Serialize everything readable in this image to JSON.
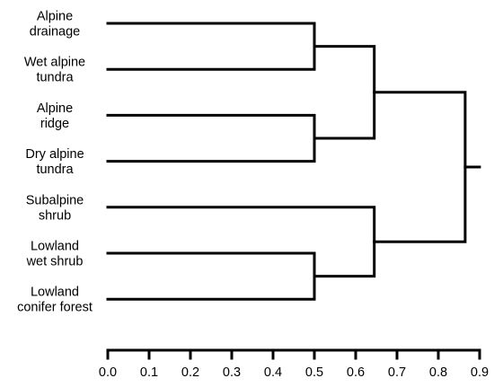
{
  "dendrogram": {
    "leaves": [
      {
        "lines": [
          "Alpine",
          "drainage"
        ]
      },
      {
        "lines": [
          "Wet alpine",
          "tundra"
        ]
      },
      {
        "lines": [
          "Alpine",
          "ridge"
        ]
      },
      {
        "lines": [
          "Dry alpine",
          "tundra"
        ]
      },
      {
        "lines": [
          "Subalpine",
          "shrub"
        ]
      },
      {
        "lines": [
          "Lowland",
          "wet shrub"
        ]
      },
      {
        "lines": [
          "Lowland",
          "conifer forest"
        ]
      }
    ],
    "merges": [
      {
        "id": "m1",
        "children": [
          "L0",
          "L1"
        ],
        "height": 0.5
      },
      {
        "id": "m2",
        "children": [
          "L2",
          "L3"
        ],
        "height": 0.5
      },
      {
        "id": "m3",
        "children": [
          "L5",
          "L6"
        ],
        "height": 0.5
      },
      {
        "id": "m4",
        "children": [
          "m1",
          "m2"
        ],
        "height": 0.645
      },
      {
        "id": "m5",
        "children": [
          "L4",
          "m3"
        ],
        "height": 0.645
      },
      {
        "id": "m6",
        "children": [
          "m4",
          "m5"
        ],
        "height": 0.865
      }
    ],
    "axis": {
      "range": [
        0.0,
        0.9
      ],
      "ticks": [
        "0.0",
        "0.1",
        "0.2",
        "0.3",
        "0.4",
        "0.5",
        "0.6",
        "0.7",
        "0.8",
        "0.9"
      ],
      "values": [
        0.0,
        0.1,
        0.2,
        0.3,
        0.4,
        0.5,
        0.6,
        0.7,
        0.8,
        0.9
      ]
    }
  }
}
